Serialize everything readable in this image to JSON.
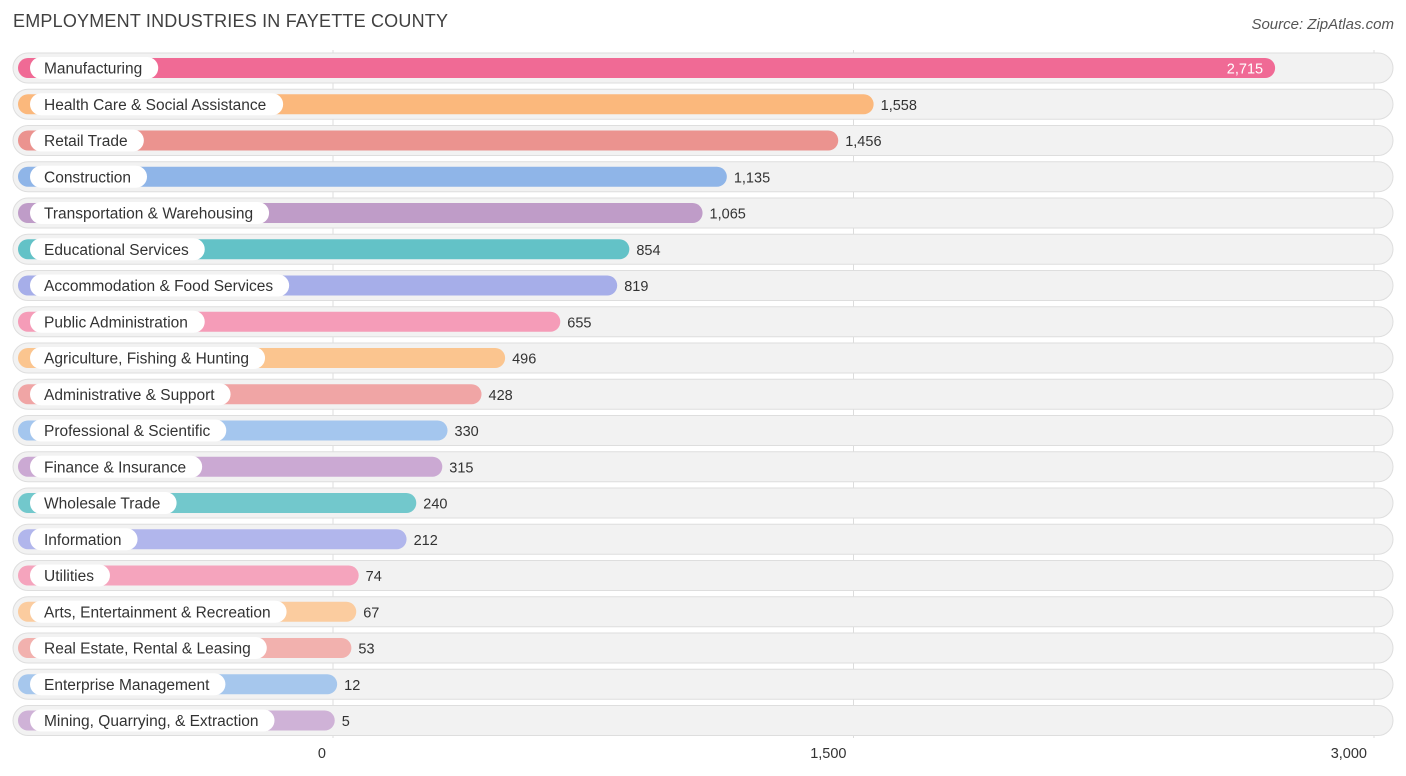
{
  "header": {
    "title": "EMPLOYMENT INDUSTRIES IN FAYETTE COUNTY",
    "source": "Source: ZipAtlas.com"
  },
  "chart_data": {
    "type": "bar",
    "orientation": "horizontal",
    "title": "EMPLOYMENT INDUSTRIES IN FAYETTE COUNTY",
    "xlim": [
      0,
      3000
    ],
    "xticks": [
      0,
      1500,
      3000
    ],
    "xtick_labels": [
      "0",
      "1,500",
      "3,000"
    ],
    "categories": [
      "Manufacturing",
      "Health Care & Social Assistance",
      "Retail Trade",
      "Construction",
      "Transportation & Warehousing",
      "Educational Services",
      "Accommodation & Food Services",
      "Public Administration",
      "Agriculture, Fishing & Hunting",
      "Administrative & Support",
      "Professional & Scientific",
      "Finance & Insurance",
      "Wholesale Trade",
      "Information",
      "Utilities",
      "Arts, Entertainment & Recreation",
      "Real Estate, Rental & Leasing",
      "Enterprise Management",
      "Mining, Quarrying, & Extraction"
    ],
    "values": [
      2715,
      1558,
      1456,
      1135,
      1065,
      854,
      819,
      655,
      496,
      428,
      330,
      315,
      240,
      212,
      74,
      67,
      53,
      12,
      5
    ],
    "value_labels": [
      "2,715",
      "1,558",
      "1,456",
      "1,135",
      "1,065",
      "854",
      "819",
      "655",
      "496",
      "428",
      "330",
      "315",
      "240",
      "212",
      "74",
      "67",
      "53",
      "12",
      "5"
    ],
    "colors": [
      "#f06a95",
      "#fbb87c",
      "#eb938f",
      "#8fb5e8",
      "#bf9cc8",
      "#63c2c7",
      "#a6aee9",
      "#f59cb8",
      "#fbc58f",
      "#f0a5a5",
      "#a4c6ee",
      "#cba9d3",
      "#72c8cc",
      "#b1b6ec",
      "#f5a4bd",
      "#fbcc9f",
      "#f2b1ae",
      "#a6c7ed",
      "#cfb2d7"
    ]
  }
}
